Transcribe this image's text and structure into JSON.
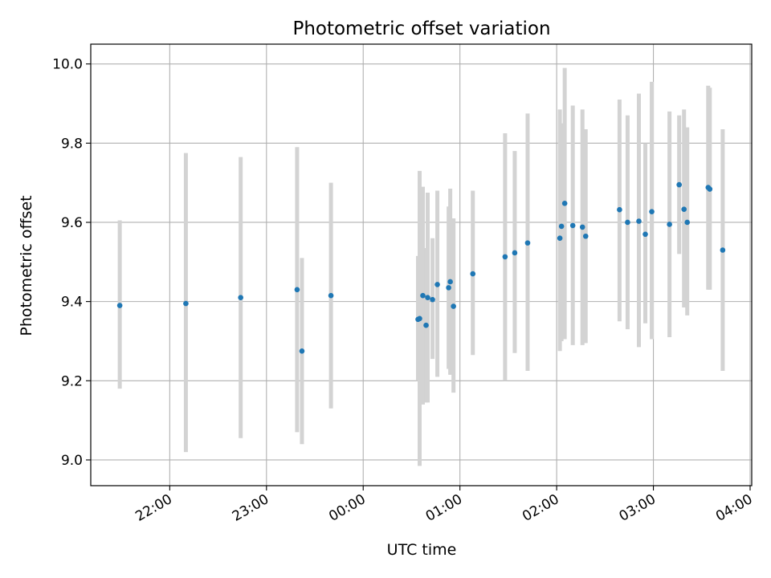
{
  "chart_data": {
    "type": "scatter",
    "title": "Photometric offset variation",
    "xlabel": "UTC time",
    "ylabel": "Photometric offset",
    "x_ticks": [
      "22:00",
      "23:00",
      "00:00",
      "01:00",
      "02:00",
      "03:00",
      "04:00"
    ],
    "y_ticks": [
      "9.0",
      "9.2",
      "9.4",
      "9.6",
      "9.8",
      "10.0"
    ],
    "ylim": [
      8.935,
      10.05
    ],
    "xlim": [
      "21:11",
      "04:01"
    ],
    "grid": true,
    "colors": {
      "point": "#1f77b4",
      "errorbar": "#d3d3d3",
      "grid": "#b0b0b0"
    },
    "series": [
      {
        "points": [
          {
            "x": "21:29",
            "y": 9.39,
            "err_low": 9.18,
            "err_high": 9.605
          },
          {
            "x": "22:10",
            "y": 9.395,
            "err_low": 9.02,
            "err_high": 9.775
          },
          {
            "x": "22:44",
            "y": 9.41,
            "err_low": 9.055,
            "err_high": 9.765
          },
          {
            "x": "23:19",
            "y": 9.43,
            "err_low": 9.07,
            "err_high": 9.79
          },
          {
            "x": "23:22",
            "y": 9.275,
            "err_low": 9.04,
            "err_high": 9.51
          },
          {
            "x": "23:40",
            "y": 9.415,
            "err_low": 9.13,
            "err_high": 9.7
          },
          {
            "x": "00:34",
            "y": 9.355,
            "err_low": 9.2,
            "err_high": 9.515
          },
          {
            "x": "00:35",
            "y": 9.357,
            "err_low": 8.985,
            "err_high": 9.73
          },
          {
            "x": "00:37",
            "y": 9.415,
            "err_low": 9.14,
            "err_high": 9.69
          },
          {
            "x": "00:39",
            "y": 9.34,
            "err_low": 9.145,
            "err_high": 9.535
          },
          {
            "x": "00:40",
            "y": 9.41,
            "err_low": 9.145,
            "err_high": 9.675
          },
          {
            "x": "00:43",
            "y": 9.405,
            "err_low": 9.255,
            "err_high": 9.56
          },
          {
            "x": "00:46",
            "y": 9.443,
            "err_low": 9.21,
            "err_high": 9.68
          },
          {
            "x": "00:53",
            "y": 9.435,
            "err_low": 9.23,
            "err_high": 9.64
          },
          {
            "x": "00:54",
            "y": 9.45,
            "err_low": 9.215,
            "err_high": 9.685
          },
          {
            "x": "00:56",
            "y": 9.388,
            "err_low": 9.17,
            "err_high": 9.61
          },
          {
            "x": "01:08",
            "y": 9.47,
            "err_low": 9.265,
            "err_high": 9.68
          },
          {
            "x": "01:28",
            "y": 9.513,
            "err_low": 9.2,
            "err_high": 9.825
          },
          {
            "x": "01:34",
            "y": 9.523,
            "err_low": 9.27,
            "err_high": 9.78
          },
          {
            "x": "01:42",
            "y": 9.548,
            "err_low": 9.225,
            "err_high": 9.875
          },
          {
            "x": "02:02",
            "y": 9.56,
            "err_low": 9.275,
            "err_high": 9.885
          },
          {
            "x": "02:03",
            "y": 9.59,
            "err_low": 9.3,
            "err_high": 9.85
          },
          {
            "x": "02:05",
            "y": 9.648,
            "err_low": 9.305,
            "err_high": 9.99
          },
          {
            "x": "02:10",
            "y": 9.592,
            "err_low": 9.29,
            "err_high": 9.895
          },
          {
            "x": "02:16",
            "y": 9.588,
            "err_low": 9.29,
            "err_high": 9.885
          },
          {
            "x": "02:18",
            "y": 9.565,
            "err_low": 9.295,
            "err_high": 9.835
          },
          {
            "x": "02:39",
            "y": 9.632,
            "err_low": 9.35,
            "err_high": 9.91
          },
          {
            "x": "02:44",
            "y": 9.6,
            "err_low": 9.33,
            "err_high": 9.87
          },
          {
            "x": "02:51",
            "y": 9.603,
            "err_low": 9.285,
            "err_high": 9.925
          },
          {
            "x": "02:55",
            "y": 9.57,
            "err_low": 9.345,
            "err_high": 9.8
          },
          {
            "x": "02:59",
            "y": 9.627,
            "err_low": 9.305,
            "err_high": 9.955
          },
          {
            "x": "03:10",
            "y": 9.595,
            "err_low": 9.31,
            "err_high": 9.88
          },
          {
            "x": "03:16",
            "y": 9.695,
            "err_low": 9.52,
            "err_high": 9.87
          },
          {
            "x": "03:19",
            "y": 9.633,
            "err_low": 9.385,
            "err_high": 9.885
          },
          {
            "x": "03:21",
            "y": 9.6,
            "err_low": 9.365,
            "err_high": 9.84
          },
          {
            "x": "03:34",
            "y": 9.688,
            "err_low": 9.43,
            "err_high": 9.945
          },
          {
            "x": "03:35",
            "y": 9.684,
            "err_low": 9.43,
            "err_high": 9.94
          },
          {
            "x": "03:43",
            "y": 9.53,
            "err_low": 9.225,
            "err_high": 9.835
          }
        ]
      }
    ]
  }
}
